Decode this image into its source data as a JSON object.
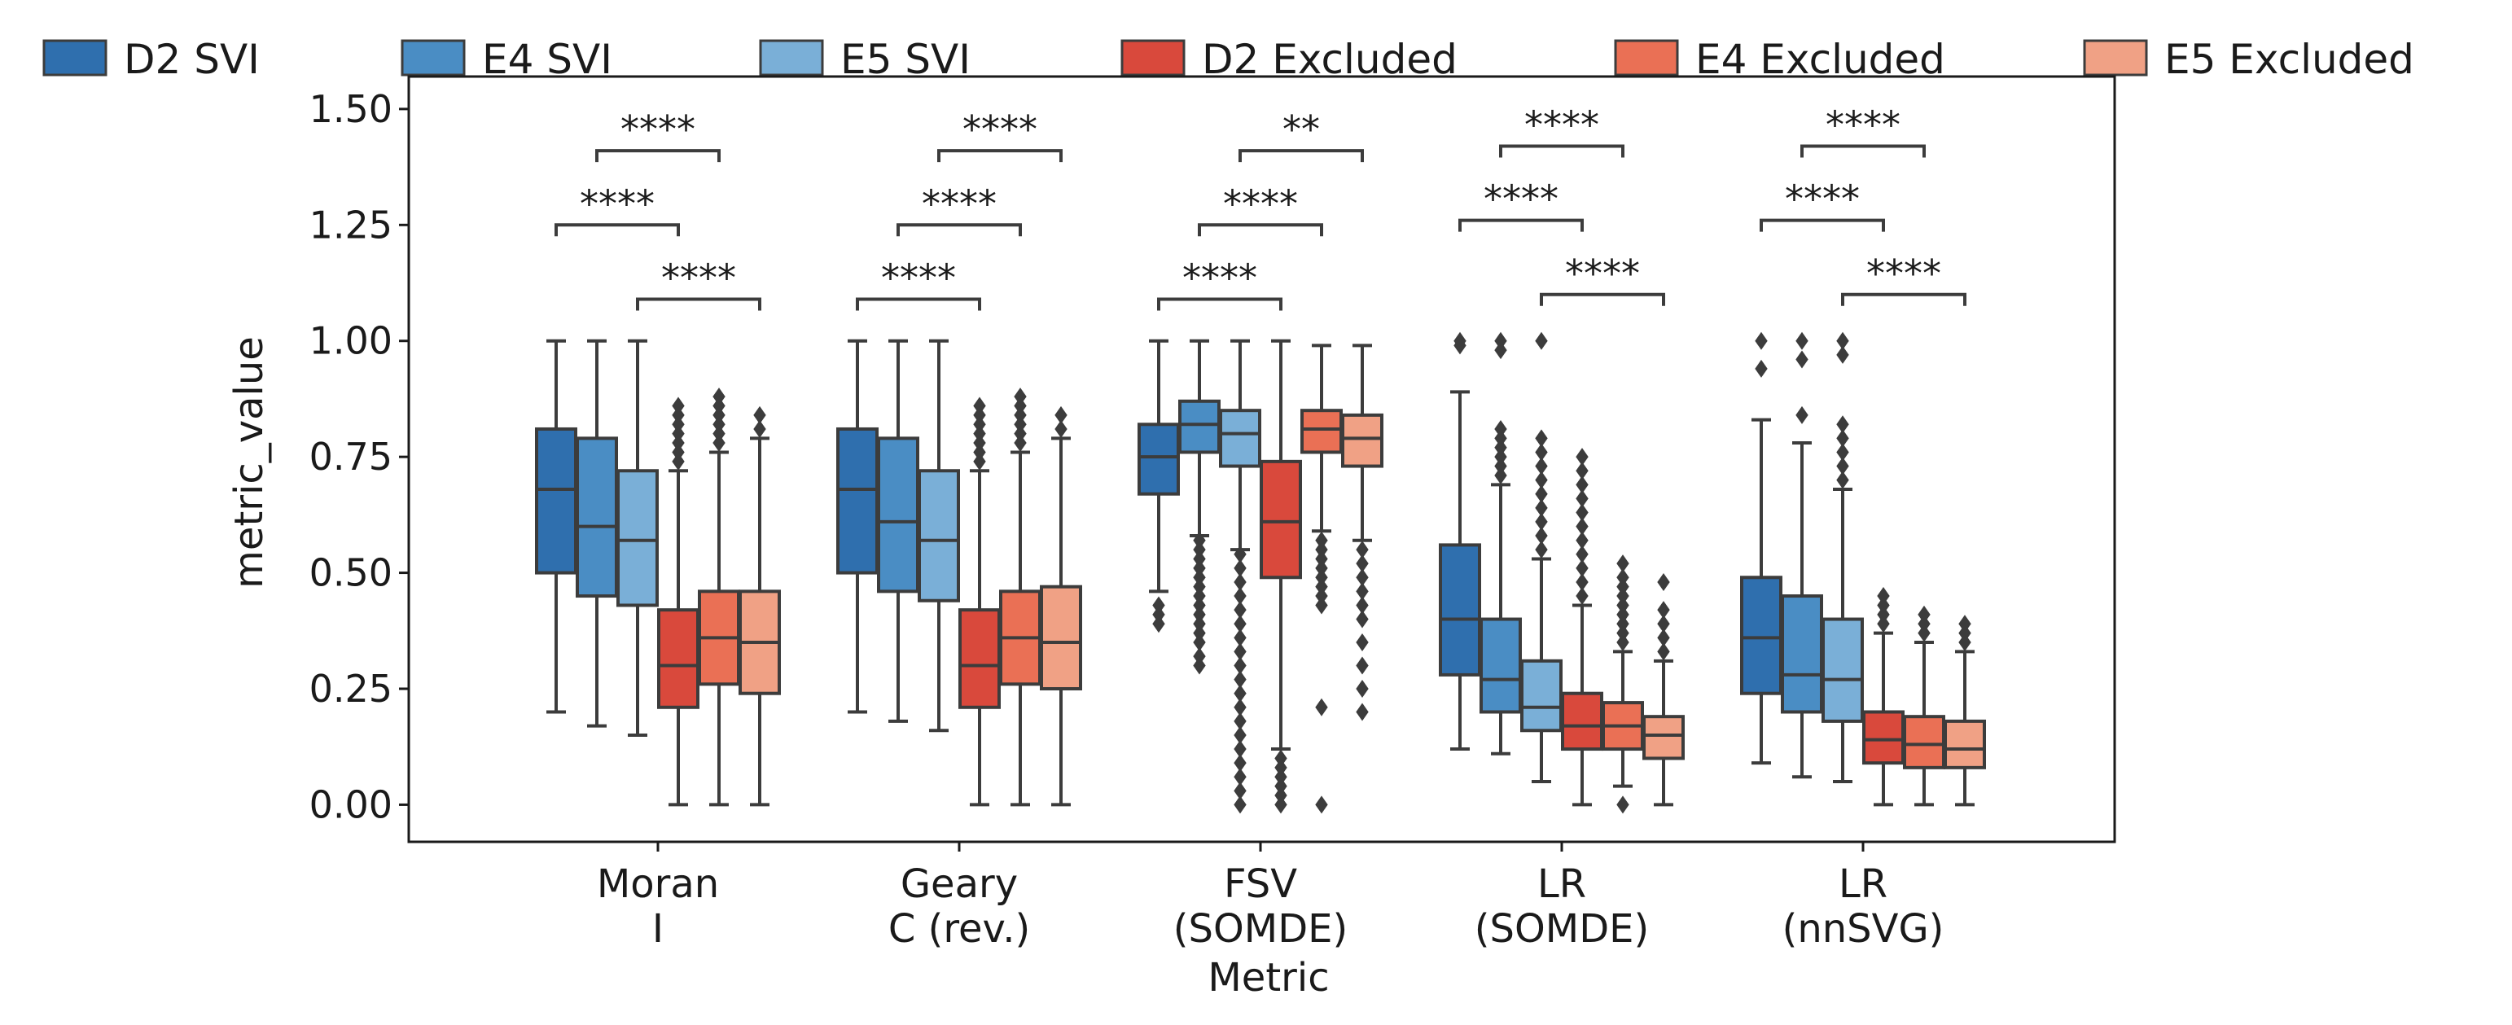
{
  "chart_data": {
    "type": "boxplot",
    "title": "",
    "xlabel": "Metric",
    "ylabel": "metric_value",
    "ylim": [
      -0.08,
      1.57
    ],
    "yticks": [
      "0.00",
      "0.25",
      "0.50",
      "0.75",
      "1.00",
      "1.25",
      "1.50"
    ],
    "categories": [
      {
        "line1": "Moran",
        "line2": "I"
      },
      {
        "line1": "Geary",
        "line2": "C (rev.)"
      },
      {
        "line1": "FSV",
        "line2": "(SOMDE)"
      },
      {
        "line1": "LR",
        "line2": "(SOMDE)"
      },
      {
        "line1": "LR",
        "line2": "(nnSVG)"
      }
    ],
    "legend": {
      "placement": "top (outside)",
      "entries": [
        {
          "name": "D2 SVI",
          "color": "#2f6fae"
        },
        {
          "name": "E4 SVI",
          "color": "#4a8dc4"
        },
        {
          "name": "E5 SVI",
          "color": "#7aafd7"
        },
        {
          "name": "D2 Excluded",
          "color": "#d9493c"
        },
        {
          "name": "E4 Excluded",
          "color": "#ea7055"
        },
        {
          "name": "E5 Excluded",
          "color": "#f0a185"
        }
      ]
    },
    "series": [
      {
        "name": "D2 SVI",
        "boxes": [
          {
            "whislo": 0.2,
            "q1": 0.5,
            "med": 0.68,
            "q3": 0.81,
            "whishi": 1.0,
            "fliers": []
          },
          {
            "whislo": 0.2,
            "q1": 0.5,
            "med": 0.68,
            "q3": 0.81,
            "whishi": 1.0,
            "fliers": []
          },
          {
            "whislo": 0.46,
            "q1": 0.67,
            "med": 0.75,
            "q3": 0.82,
            "whishi": 1.0,
            "fliers": [
              0.39,
              0.41,
              0.43
            ]
          },
          {
            "whislo": 0.12,
            "q1": 0.28,
            "med": 0.4,
            "q3": 0.56,
            "whishi": 0.89,
            "fliers": [
              0.99,
              1.0
            ]
          },
          {
            "whislo": 0.09,
            "q1": 0.24,
            "med": 0.36,
            "q3": 0.49,
            "whishi": 0.83,
            "fliers": [
              0.94,
              1.0
            ]
          }
        ]
      },
      {
        "name": "E4 SVI",
        "boxes": [
          {
            "whislo": 0.17,
            "q1": 0.45,
            "med": 0.6,
            "q3": 0.79,
            "whishi": 1.0,
            "fliers": []
          },
          {
            "whislo": 0.18,
            "q1": 0.46,
            "med": 0.61,
            "q3": 0.79,
            "whishi": 1.0,
            "fliers": []
          },
          {
            "whislo": 0.58,
            "q1": 0.76,
            "med": 0.82,
            "q3": 0.87,
            "whishi": 1.0,
            "fliers": [
              0.3,
              0.32,
              0.35,
              0.37,
              0.39,
              0.41,
              0.43,
              0.45,
              0.47,
              0.49,
              0.51,
              0.53,
              0.55,
              0.57
            ]
          },
          {
            "whislo": 0.11,
            "q1": 0.2,
            "med": 0.27,
            "q3": 0.4,
            "whishi": 0.69,
            "fliers": [
              0.71,
              0.73,
              0.75,
              0.77,
              0.79,
              0.81,
              0.98,
              1.0
            ]
          },
          {
            "whislo": 0.06,
            "q1": 0.2,
            "med": 0.28,
            "q3": 0.45,
            "whishi": 0.78,
            "fliers": [
              0.84,
              0.96,
              1.0
            ]
          }
        ]
      },
      {
        "name": "E5 SVI",
        "boxes": [
          {
            "whislo": 0.15,
            "q1": 0.43,
            "med": 0.57,
            "q3": 0.72,
            "whishi": 1.0,
            "fliers": []
          },
          {
            "whislo": 0.16,
            "q1": 0.44,
            "med": 0.57,
            "q3": 0.72,
            "whishi": 1.0,
            "fliers": []
          },
          {
            "whislo": 0.55,
            "q1": 0.73,
            "med": 0.8,
            "q3": 0.85,
            "whishi": 1.0,
            "fliers": [
              0.0,
              0.03,
              0.06,
              0.09,
              0.12,
              0.15,
              0.18,
              0.21,
              0.24,
              0.27,
              0.3,
              0.33,
              0.36,
              0.39,
              0.42,
              0.45,
              0.48,
              0.51,
              0.54
            ]
          },
          {
            "whislo": 0.05,
            "q1": 0.16,
            "med": 0.21,
            "q3": 0.31,
            "whishi": 0.53,
            "fliers": [
              0.55,
              0.58,
              0.61,
              0.64,
              0.67,
              0.7,
              0.73,
              0.76,
              0.79,
              1.0
            ]
          },
          {
            "whislo": 0.05,
            "q1": 0.18,
            "med": 0.27,
            "q3": 0.4,
            "whishi": 0.68,
            "fliers": [
              0.7,
              0.73,
              0.76,
              0.79,
              0.82,
              0.97,
              1.0
            ]
          }
        ]
      },
      {
        "name": "D2 Excluded",
        "boxes": [
          {
            "whislo": 0.0,
            "q1": 0.21,
            "med": 0.3,
            "q3": 0.42,
            "whishi": 0.72,
            "fliers": [
              0.74,
              0.76,
              0.78,
              0.8,
              0.82,
              0.84,
              0.86
            ]
          },
          {
            "whislo": 0.0,
            "q1": 0.21,
            "med": 0.3,
            "q3": 0.42,
            "whishi": 0.72,
            "fliers": [
              0.74,
              0.76,
              0.78,
              0.8,
              0.82,
              0.84,
              0.86
            ]
          },
          {
            "whislo": 0.12,
            "q1": 0.49,
            "med": 0.61,
            "q3": 0.74,
            "whishi": 1.0,
            "fliers": [
              0.0,
              0.02,
              0.04,
              0.06,
              0.08,
              0.1
            ]
          },
          {
            "whislo": 0.0,
            "q1": 0.12,
            "med": 0.17,
            "q3": 0.24,
            "whishi": 0.43,
            "fliers": [
              0.45,
              0.48,
              0.51,
              0.54,
              0.57,
              0.6,
              0.63,
              0.66,
              0.69,
              0.72,
              0.75
            ]
          },
          {
            "whislo": 0.0,
            "q1": 0.09,
            "med": 0.14,
            "q3": 0.2,
            "whishi": 0.37,
            "fliers": [
              0.39,
              0.41,
              0.43,
              0.45
            ]
          }
        ]
      },
      {
        "name": "E4 Excluded",
        "boxes": [
          {
            "whislo": 0.0,
            "q1": 0.26,
            "med": 0.36,
            "q3": 0.46,
            "whishi": 0.76,
            "fliers": [
              0.78,
              0.8,
              0.82,
              0.84,
              0.86,
              0.88
            ]
          },
          {
            "whislo": 0.0,
            "q1": 0.26,
            "med": 0.36,
            "q3": 0.46,
            "whishi": 0.76,
            "fliers": [
              0.78,
              0.8,
              0.82,
              0.84,
              0.86,
              0.88
            ]
          },
          {
            "whislo": 0.59,
            "q1": 0.76,
            "med": 0.81,
            "q3": 0.85,
            "whishi": 0.99,
            "fliers": [
              0.0,
              0.21,
              0.43,
              0.45,
              0.47,
              0.49,
              0.51,
              0.53,
              0.55,
              0.57
            ]
          },
          {
            "whislo": 0.04,
            "q1": 0.12,
            "med": 0.17,
            "q3": 0.22,
            "whishi": 0.33,
            "fliers": [
              0.0,
              0.35,
              0.37,
              0.39,
              0.41,
              0.43,
              0.45,
              0.47,
              0.49,
              0.52
            ]
          },
          {
            "whislo": 0.0,
            "q1": 0.08,
            "med": 0.13,
            "q3": 0.19,
            "whishi": 0.35,
            "fliers": [
              0.37,
              0.39,
              0.41
            ]
          }
        ]
      },
      {
        "name": "E5 Excluded",
        "boxes": [
          {
            "whislo": 0.0,
            "q1": 0.24,
            "med": 0.35,
            "q3": 0.46,
            "whishi": 0.79,
            "fliers": [
              0.81,
              0.84
            ]
          },
          {
            "whislo": 0.0,
            "q1": 0.25,
            "med": 0.35,
            "q3": 0.47,
            "whishi": 0.79,
            "fliers": [
              0.81,
              0.84
            ]
          },
          {
            "whislo": 0.57,
            "q1": 0.73,
            "med": 0.79,
            "q3": 0.84,
            "whishi": 0.99,
            "fliers": [
              0.2,
              0.25,
              0.3,
              0.35,
              0.4,
              0.43,
              0.46,
              0.49,
              0.52,
              0.55
            ]
          },
          {
            "whislo": 0.0,
            "q1": 0.1,
            "med": 0.15,
            "q3": 0.19,
            "whishi": 0.31,
            "fliers": [
              0.33,
              0.36,
              0.39,
              0.42,
              0.48
            ]
          },
          {
            "whislo": 0.0,
            "q1": 0.08,
            "med": 0.12,
            "q3": 0.18,
            "whishi": 0.33,
            "fliers": [
              0.35,
              0.37,
              0.39
            ]
          }
        ]
      }
    ],
    "annotations": [
      {
        "category": 0,
        "from": 0,
        "to": 3,
        "label": "****",
        "level": 1.25
      },
      {
        "category": 0,
        "from": 1,
        "to": 4,
        "label": "****",
        "level": 1.41
      },
      {
        "category": 0,
        "from": 2,
        "to": 5,
        "label": "****",
        "level": 1.09
      },
      {
        "category": 1,
        "from": 0,
        "to": 3,
        "label": "****",
        "level": 1.09
      },
      {
        "category": 1,
        "from": 1,
        "to": 4,
        "label": "****",
        "level": 1.25
      },
      {
        "category": 1,
        "from": 2,
        "to": 5,
        "label": "****",
        "level": 1.41
      },
      {
        "category": 2,
        "from": 0,
        "to": 3,
        "label": "****",
        "level": 1.09
      },
      {
        "category": 2,
        "from": 1,
        "to": 4,
        "label": "****",
        "level": 1.25
      },
      {
        "category": 2,
        "from": 2,
        "to": 5,
        "label": "**",
        "level": 1.41
      },
      {
        "category": 3,
        "from": 0,
        "to": 3,
        "label": "****",
        "level": 1.26
      },
      {
        "category": 3,
        "from": 1,
        "to": 4,
        "label": "****",
        "level": 1.42
      },
      {
        "category": 3,
        "from": 2,
        "to": 5,
        "label": "****",
        "level": 1.1
      },
      {
        "category": 4,
        "from": 0,
        "to": 3,
        "label": "****",
        "level": 1.26
      },
      {
        "category": 4,
        "from": 1,
        "to": 4,
        "label": "****",
        "level": 1.42
      },
      {
        "category": 4,
        "from": 2,
        "to": 5,
        "label": "****",
        "level": 1.1
      }
    ]
  }
}
